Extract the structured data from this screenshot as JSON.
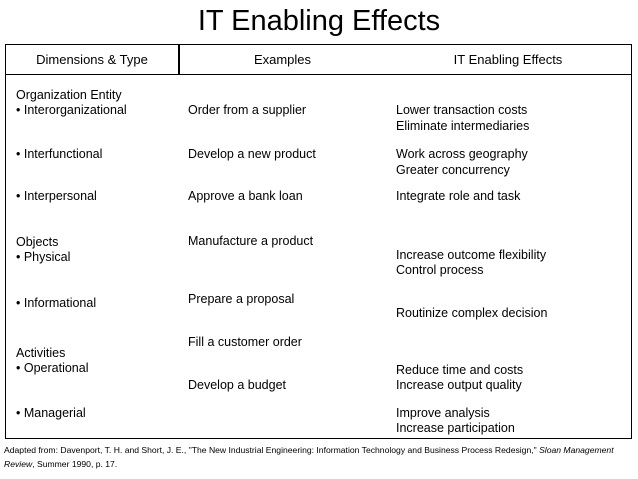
{
  "title": "IT Enabling Effects",
  "headers": {
    "dimensions": "Dimensions & Type",
    "examples": "Examples",
    "effects": "IT Enabling Effects"
  },
  "dimensions": [
    "Organization Entity",
    "•  Interorganizational",
    "•  Interfunctional",
    "•  Interpersonal",
    "Objects",
    "•  Physical",
    "•  Informational",
    "Activities",
    "•  Operational",
    "•  Managerial"
  ],
  "examples": [
    "Order from a supplier",
    "Develop a new product",
    "Approve a bank loan",
    "Manufacture a product",
    "Prepare a proposal",
    "Fill a customer order",
    "Develop a budget"
  ],
  "effects": [
    "Lower transaction costs",
    "Eliminate intermediaries",
    "Work across geography",
    "Greater concurrency",
    "Integrate role and task",
    "Increase outcome flexibility",
    "Control process",
    "Routinize complex decision",
    "Reduce time and costs",
    "Increase output quality",
    "Improve analysis",
    "Increase participation"
  ],
  "footer": {
    "prefix": "Adapted from: Davenport, T. H. and Short, J. E., \"The New Industrial Engineering: Information Technology and Business Process Redesign,\" ",
    "journal": "Sloan Management Review",
    "suffix": ", Summer 1990, p. 17."
  }
}
